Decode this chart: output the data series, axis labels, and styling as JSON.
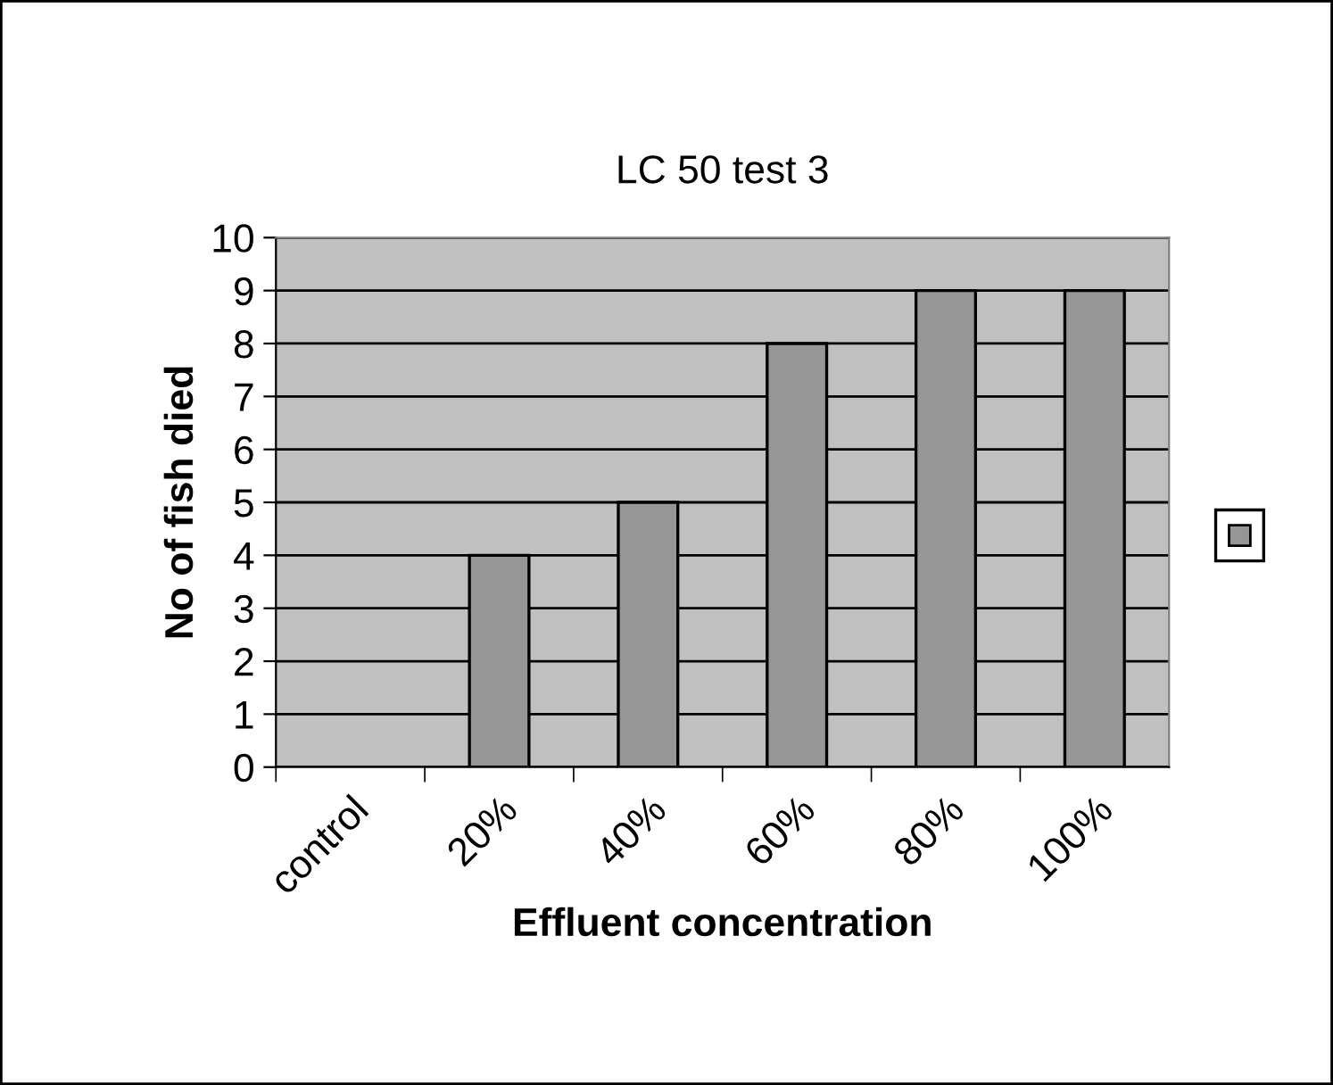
{
  "chart_data": {
    "type": "bar",
    "title": "LC 50 test 3",
    "xlabel": "Effluent concentration",
    "ylabel": "No of fish died",
    "categories": [
      "control",
      "20%",
      "40%",
      "60%",
      "80%",
      "100%"
    ],
    "series": [
      {
        "color": "#969696",
        "values": [
          0,
          4,
          5,
          8,
          9,
          9
        ]
      }
    ],
    "ylim": [
      0,
      10
    ],
    "yticks": [
      0,
      1,
      2,
      3,
      4,
      5,
      6,
      7,
      8,
      9,
      10
    ],
    "grid": "y"
  }
}
